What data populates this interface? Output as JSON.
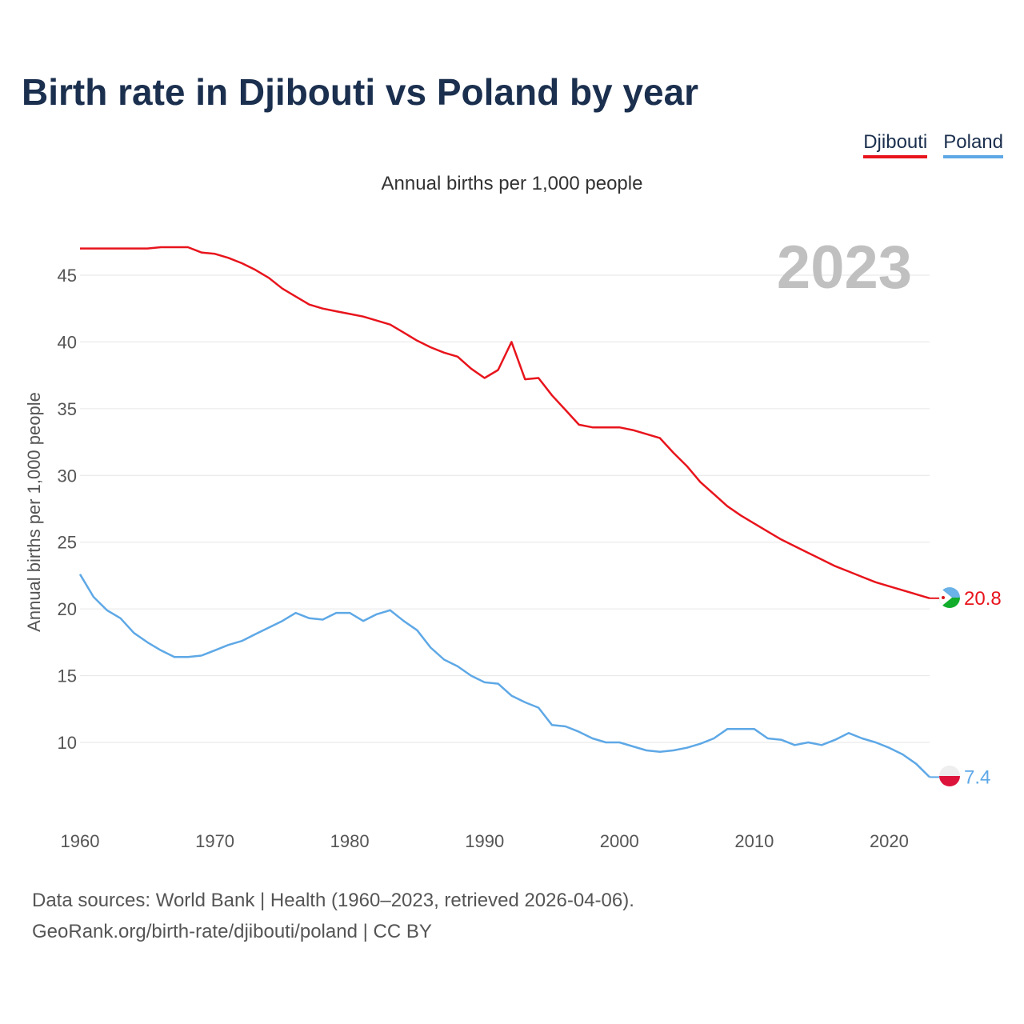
{
  "header": {
    "title": "Birth rate in Djibouti vs Poland by year",
    "subtitle": "Annual births per 1,000 people"
  },
  "legend": [
    {
      "label": "Djibouti",
      "color": "#e8141c"
    },
    {
      "label": "Poland",
      "color": "#5ea8e6"
    }
  ],
  "footer": {
    "line1": "Data sources: World Bank | Health (1960–2023, retrieved 2026-04-06).",
    "line2": "GeoRank.org/birth-rate/djibouti/poland | CC BY"
  },
  "chart_data": {
    "type": "line",
    "title": "Birth rate in Djibouti vs Poland by year",
    "subtitle": "Annual births per 1,000 people",
    "xlabel": "",
    "ylabel": "Annual births per 1,000 people",
    "year_watermark": "2023",
    "xlim": [
      1960,
      2023
    ],
    "ylim": [
      5,
      48
    ],
    "x_ticks": [
      1960,
      1970,
      1980,
      1990,
      2000,
      2010,
      2020
    ],
    "y_ticks": [
      10,
      15,
      20,
      25,
      30,
      35,
      40,
      45
    ],
    "grid": true,
    "legend_position": "top-right",
    "x": [
      1960,
      1961,
      1962,
      1963,
      1964,
      1965,
      1966,
      1967,
      1968,
      1969,
      1970,
      1971,
      1972,
      1973,
      1974,
      1975,
      1976,
      1977,
      1978,
      1979,
      1980,
      1981,
      1982,
      1983,
      1984,
      1985,
      1986,
      1987,
      1988,
      1989,
      1990,
      1991,
      1992,
      1993,
      1994,
      1995,
      1996,
      1997,
      1998,
      1999,
      2000,
      2001,
      2002,
      2003,
      2004,
      2005,
      2006,
      2007,
      2008,
      2009,
      2010,
      2011,
      2012,
      2013,
      2014,
      2015,
      2016,
      2017,
      2018,
      2019,
      2020,
      2021,
      2022,
      2023
    ],
    "series": [
      {
        "name": "Djibouti",
        "color": "#e8141c",
        "end_label": "20.8",
        "values": [
          47.0,
          47.0,
          47.0,
          47.0,
          47.0,
          47.0,
          47.1,
          47.1,
          47.1,
          46.7,
          46.6,
          46.3,
          45.9,
          45.4,
          44.8,
          44.0,
          43.4,
          42.8,
          42.5,
          42.3,
          42.1,
          41.9,
          41.6,
          41.3,
          40.7,
          40.1,
          39.6,
          39.2,
          38.9,
          38.0,
          37.3,
          37.9,
          40.0,
          37.2,
          37.3,
          36.0,
          34.9,
          33.8,
          33.6,
          33.6,
          33.6,
          33.4,
          33.1,
          32.8,
          31.7,
          30.7,
          29.5,
          28.6,
          27.7,
          27.0,
          26.4,
          25.8,
          25.2,
          24.7,
          24.2,
          23.7,
          23.2,
          22.8,
          22.4,
          22.0,
          21.7,
          21.4,
          21.1,
          20.8
        ]
      },
      {
        "name": "Poland",
        "color": "#5ea8e6",
        "end_label": "7.4",
        "values": [
          22.6,
          20.9,
          19.9,
          19.3,
          18.2,
          17.5,
          16.9,
          16.4,
          16.4,
          16.5,
          16.9,
          17.3,
          17.6,
          18.1,
          18.6,
          19.1,
          19.7,
          19.3,
          19.2,
          19.7,
          19.7,
          19.1,
          19.6,
          19.9,
          19.1,
          18.4,
          17.1,
          16.2,
          15.7,
          15.0,
          14.5,
          14.4,
          13.5,
          13.0,
          12.6,
          11.3,
          11.2,
          10.8,
          10.3,
          10.0,
          10.0,
          9.7,
          9.4,
          9.3,
          9.4,
          9.6,
          9.9,
          10.3,
          11.0,
          11.0,
          11.0,
          10.3,
          10.2,
          9.8,
          10.0,
          9.8,
          10.2,
          10.7,
          10.3,
          10.0,
          9.6,
          9.1,
          8.4,
          7.4
        ]
      }
    ]
  }
}
